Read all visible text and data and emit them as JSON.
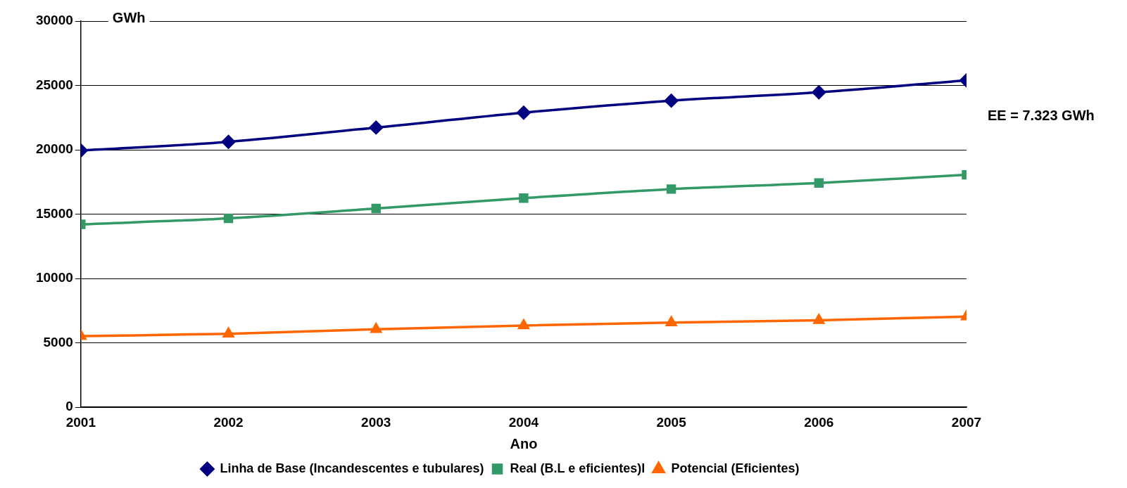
{
  "chart_data": {
    "type": "line",
    "xlabel": "Ano",
    "ylabel": "GWh",
    "x": [
      2001,
      2002,
      2003,
      2004,
      2005,
      2006,
      2007
    ],
    "xlim": [
      2001,
      2007
    ],
    "xticks": [
      2001,
      2002,
      2003,
      2004,
      2005,
      2006,
      2007
    ],
    "ylim": [
      0,
      30000
    ],
    "yticks": [
      0,
      5000,
      10000,
      15000,
      20000,
      25000,
      30000
    ],
    "grid": "y",
    "legend": "bottom",
    "annotations": [
      "EE = 7.323 GWh"
    ],
    "series": [
      {
        "name": "Linha de Base (Incandescentes e tubulares)",
        "color": "#000080",
        "marker": "diamond",
        "values": [
          19950,
          20620,
          21730,
          22890,
          23820,
          24470,
          25400
        ]
      },
      {
        "name": "Real (B.L e eficientes)l",
        "color": "#339966",
        "marker": "square",
        "values": [
          14210,
          14680,
          15440,
          16250,
          16950,
          17420,
          18060
        ]
      },
      {
        "name": "Potencial (Eficientes)",
        "color": "#ff6600",
        "marker": "triangle",
        "values": [
          5530,
          5710,
          6060,
          6350,
          6580,
          6760,
          7050
        ]
      }
    ]
  }
}
